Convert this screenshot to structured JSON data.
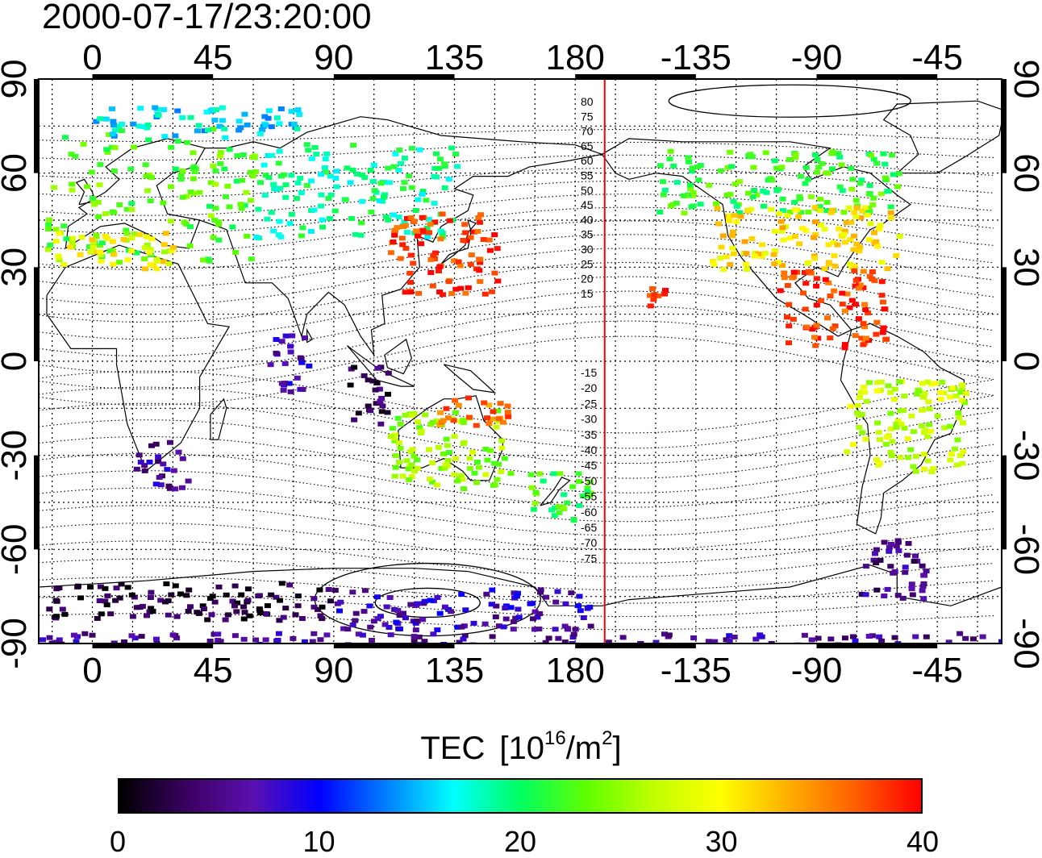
{
  "title": "2000-07-17/23:20:00",
  "lon_ticks": [
    "0",
    "45",
    "90",
    "135",
    "180",
    "-135",
    "-90",
    "-45"
  ],
  "lat_ticks": [
    "90",
    "60",
    "30",
    "0",
    "-30",
    "-60",
    "-90"
  ],
  "contour_labels_north": [
    "80",
    "75",
    "70",
    "65",
    "60",
    "55",
    "50",
    "45",
    "40",
    "35",
    "30",
    "25",
    "20",
    "15"
  ],
  "contour_labels_south": [
    "-15",
    "-20",
    "-25",
    "-30",
    "-35",
    "-40",
    "-45",
    "-50",
    "-55",
    "-60",
    "-65",
    "-70",
    "-75"
  ],
  "colorbar": {
    "title_main": "TEC",
    "unit_open": "[10",
    "unit_exp1": "16",
    "unit_mid": "/m",
    "unit_exp2": "2",
    "unit_close": "]",
    "ticks": [
      "0",
      "10",
      "20",
      "30",
      "40"
    ],
    "min": 0,
    "max": 40,
    "stops": [
      "#000000",
      "#3a0060",
      "#5a10b0",
      "#0000ff",
      "#0080ff",
      "#00ffff",
      "#00ff60",
      "#60ff00",
      "#c0ff00",
      "#ffff00",
      "#ffb000",
      "#ff6000",
      "#ff0000"
    ]
  },
  "terminator_color": "#ff0000",
  "terminator_longitude": 191,
  "map_extent": {
    "lon_min": -20,
    "lon_max": 339,
    "lat_min": -90,
    "lat_max": 90
  },
  "tec_regions": [
    {
      "name": "europe",
      "lon": [
        -18,
        60
      ],
      "lat": [
        32,
        75
      ],
      "tec": 23
    },
    {
      "name": "europe-south",
      "lon": [
        -15,
        30
      ],
      "lat": [
        30,
        42
      ],
      "tec": 30
    },
    {
      "name": "siberia-west",
      "lon": [
        60,
        135
      ],
      "lat": [
        40,
        70
      ],
      "tec": 19
    },
    {
      "name": "arctic-scandinavia",
      "lon": [
        0,
        80
      ],
      "lat": [
        72,
        82
      ],
      "tec": 16
    },
    {
      "name": "japan-china",
      "lon": [
        110,
        150
      ],
      "lat": [
        22,
        48
      ],
      "tec": 38
    },
    {
      "name": "pacific-islands",
      "lon": [
        200,
        215
      ],
      "lat": [
        18,
        24
      ],
      "tec": 38
    },
    {
      "name": "north-america-north",
      "lon": [
        210,
        300
      ],
      "lat": [
        48,
        68
      ],
      "tec": 22
    },
    {
      "name": "north-america-mid",
      "lon": [
        230,
        300
      ],
      "lat": [
        30,
        50
      ],
      "tec": 31
    },
    {
      "name": "central-america",
      "lon": [
        255,
        295
      ],
      "lat": [
        5,
        30
      ],
      "tec": 38
    },
    {
      "name": "south-america",
      "lon": [
        280,
        325
      ],
      "lat": [
        -35,
        -5
      ],
      "tec": 27
    },
    {
      "name": "southern-africa",
      "lon": [
        15,
        35
      ],
      "lat": [
        -40,
        -25
      ],
      "tec": 6
    },
    {
      "name": "indian-ocean",
      "lon": [
        65,
        80
      ],
      "lat": [
        -10,
        10
      ],
      "tec": 7
    },
    {
      "name": "indonesia",
      "lon": [
        95,
        110
      ],
      "lat": [
        -20,
        0
      ],
      "tec": 3
    },
    {
      "name": "australia",
      "lon": [
        110,
        155
      ],
      "lat": [
        -40,
        -15
      ],
      "tec": 25
    },
    {
      "name": "australia-north",
      "lon": [
        125,
        155
      ],
      "lat": [
        -20,
        -10
      ],
      "tec": 36
    },
    {
      "name": "new-zealand",
      "lon": [
        160,
        185
      ],
      "lat": [
        -50,
        -35
      ],
      "tec": 22
    },
    {
      "name": "antarctica-west",
      "lon": [
        -20,
        90
      ],
      "lat": [
        -82,
        -70
      ],
      "tec": 2
    },
    {
      "name": "antarctica-east",
      "lon": [
        90,
        185
      ],
      "lat": [
        -85,
        -72
      ],
      "tec": 7
    },
    {
      "name": "antarctica-coast",
      "lon": [
        -20,
        339
      ],
      "lat": [
        -90,
        -86
      ],
      "tec": 6
    },
    {
      "name": "patagonia",
      "lon": [
        285,
        310
      ],
      "lat": [
        -75,
        -55
      ],
      "tec": 5
    }
  ]
}
